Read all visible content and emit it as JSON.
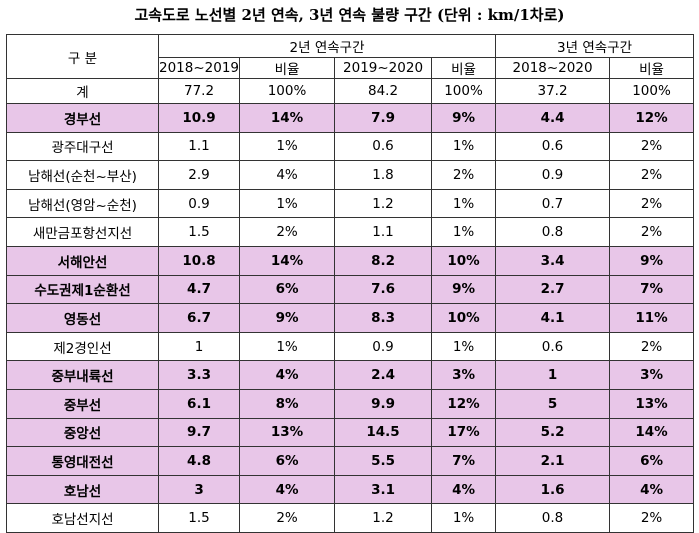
{
  "title": "고속도로 노선별 2년 연속, 3년 연속 불량 구간 (단위 : km/1차로)",
  "header": {
    "category": "구 분",
    "group_2yr": "2년 연속구간",
    "group_3yr": "3년 연속구간",
    "sub": [
      "2018~2019",
      "비율",
      "2019~2020",
      "비율",
      "2018~2020",
      "비율"
    ]
  },
  "total": {
    "name": "계",
    "cells": [
      "77.2",
      "100%",
      "84.2",
      "100%",
      "37.2",
      "100%"
    ]
  },
  "rows": [
    {
      "name": "경부선",
      "highlight": true,
      "cells": [
        "10.9",
        "14%",
        "7.9",
        "9%",
        "4.4",
        "12%"
      ]
    },
    {
      "name": "광주대구선",
      "highlight": false,
      "cells": [
        "1.1",
        "1%",
        "0.6",
        "1%",
        "0.6",
        "2%"
      ]
    },
    {
      "name": "남해선(순천~부산)",
      "highlight": false,
      "cells": [
        "2.9",
        "4%",
        "1.8",
        "2%",
        "0.9",
        "2%"
      ]
    },
    {
      "name": "남해선(영암~순천)",
      "highlight": false,
      "cells": [
        "0.9",
        "1%",
        "1.2",
        "1%",
        "0.7",
        "2%"
      ]
    },
    {
      "name": "새만금포항선지선",
      "highlight": false,
      "cells": [
        "1.5",
        "2%",
        "1.1",
        "1%",
        "0.8",
        "2%"
      ]
    },
    {
      "name": "서해안선",
      "highlight": true,
      "cells": [
        "10.8",
        "14%",
        "8.2",
        "10%",
        "3.4",
        "9%"
      ]
    },
    {
      "name": "수도권제1순환선",
      "highlight": true,
      "cells": [
        "4.7",
        "6%",
        "7.6",
        "9%",
        "2.7",
        "7%"
      ]
    },
    {
      "name": "영동선",
      "highlight": true,
      "cells": [
        "6.7",
        "9%",
        "8.3",
        "10%",
        "4.1",
        "11%"
      ]
    },
    {
      "name": "제2경인선",
      "highlight": false,
      "cells": [
        "1",
        "1%",
        "0.9",
        "1%",
        "0.6",
        "2%"
      ]
    },
    {
      "name": "중부내륙선",
      "highlight": true,
      "cells": [
        "3.3",
        "4%",
        "2.4",
        "3%",
        "1",
        "3%"
      ]
    },
    {
      "name": "중부선",
      "highlight": true,
      "cells": [
        "6.1",
        "8%",
        "9.9",
        "12%",
        "5",
        "13%"
      ]
    },
    {
      "name": "중앙선",
      "highlight": true,
      "cells": [
        "9.7",
        "13%",
        "14.5",
        "17%",
        "5.2",
        "14%"
      ]
    },
    {
      "name": "통영대전선",
      "highlight": true,
      "cells": [
        "4.8",
        "6%",
        "5.5",
        "7%",
        "2.1",
        "6%"
      ]
    },
    {
      "name": "호남선",
      "highlight": true,
      "cells": [
        "3",
        "4%",
        "3.1",
        "4%",
        "1.6",
        "4%"
      ]
    },
    {
      "name": "호남선지선",
      "highlight": false,
      "cells": [
        "1.5",
        "2%",
        "1.2",
        "1%",
        "0.8",
        "2%"
      ]
    }
  ],
  "colors": {
    "highlight": "#e8c6e8",
    "border": "#333333"
  }
}
